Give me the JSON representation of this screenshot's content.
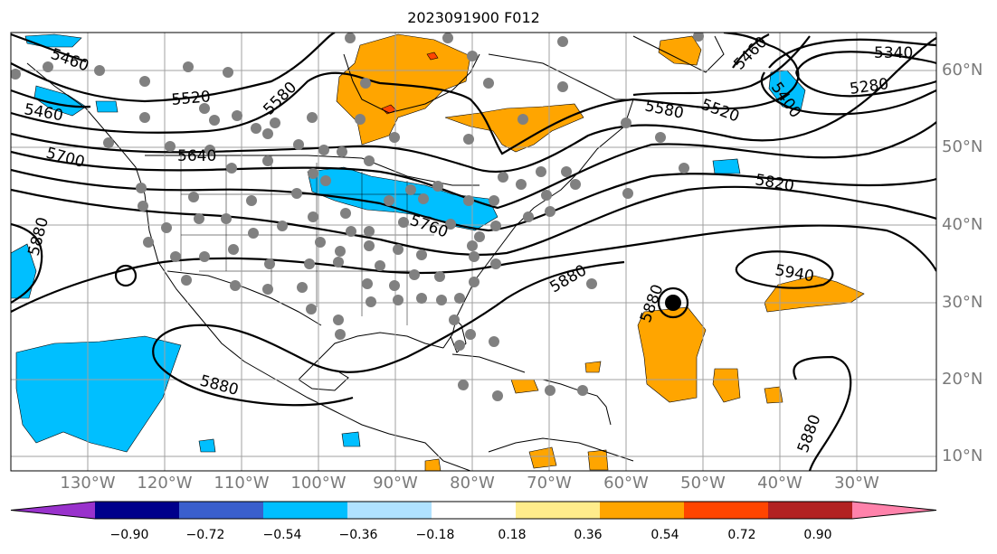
{
  "title": "2023091900 F012",
  "lat_labels": [
    "60°N",
    "50°N",
    "40°N",
    "30°N",
    "20°N",
    "10°N"
  ],
  "lon_labels": [
    "130°W",
    "120°W",
    "110°W",
    "100°W",
    "90°W",
    "80°W",
    "70°W",
    "60°W",
    "50°W",
    "40°W",
    "30°W"
  ],
  "contour_labels": [
    "5460",
    "5520",
    "5580",
    "5640",
    "5700",
    "5460",
    "5760",
    "5880",
    "5880",
    "5880",
    "5880",
    "5880",
    "5820",
    "5940",
    "5580",
    "5520",
    "5460",
    "5400",
    "5340",
    "5280"
  ],
  "colorbar": {
    "tick_labels": [
      "−0.90",
      "−0.72",
      "−0.54",
      "−0.36",
      "−0.18",
      "0.18",
      "0.36",
      "0.54",
      "0.72",
      "0.90"
    ],
    "colors": [
      "#9932cc",
      "#00008b",
      "#3a5fcd",
      "#00bfff",
      "#b0e2ff",
      "#ffffff",
      "#ffec8b",
      "#ffa500",
      "#ff4500",
      "#b22222",
      "#ff82ab"
    ]
  },
  "colors": {
    "positive_fill": "#ffa500",
    "negative_fill": "#00bfff",
    "station_dots": "#808080",
    "contours": "#000000",
    "axis_labels": "#7a7a7a"
  }
}
